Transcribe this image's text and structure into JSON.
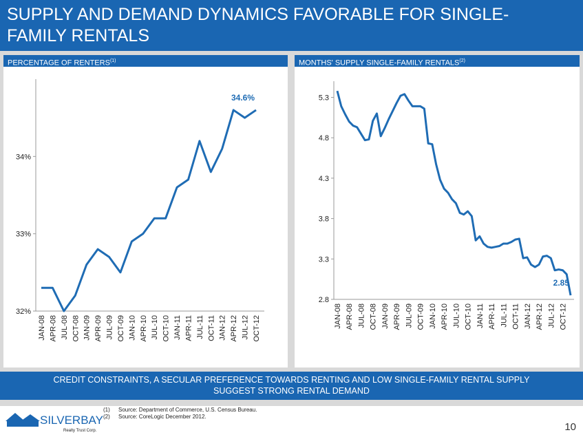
{
  "header": {
    "title": "SUPPLY AND DEMAND DYNAMICS FAVORABLE FOR SINGLE-FAMILY RENTALS"
  },
  "chart_data": [
    {
      "type": "line",
      "title": "PERCENTAGE OF RENTERS",
      "title_note": "(1)",
      "color": "#1f6cb4",
      "categories": [
        "JAN-08",
        "APR-08",
        "JUL-08",
        "OCT-08",
        "JAN-09",
        "APR-09",
        "JUL-09",
        "OCT-09",
        "JAN-10",
        "APR-10",
        "JUL-10",
        "OCT-10",
        "JAN-11",
        "APR-11",
        "JUL-11",
        "OCT-11",
        "JAN-12",
        "APR-12",
        "JUL-12",
        "OCT-12"
      ],
      "values": [
        32.3,
        32.3,
        32.0,
        32.2,
        32.6,
        32.8,
        32.7,
        32.5,
        32.9,
        33.0,
        33.2,
        33.2,
        33.6,
        33.7,
        34.2,
        33.8,
        34.1,
        34.6,
        34.5,
        34.6
      ],
      "value_labels": [
        null,
        null,
        null,
        null,
        null,
        null,
        null,
        null,
        null,
        null,
        null,
        null,
        null,
        null,
        null,
        null,
        null,
        null,
        null,
        "34.6%"
      ],
      "ylim": [
        32,
        35
      ],
      "yticks": [
        {
          "value": 32,
          "label": "32%"
        },
        {
          "value": 33,
          "label": "33%"
        },
        {
          "value": 34,
          "label": "34%"
        }
      ]
    },
    {
      "type": "line",
      "title": "MONTHS' SUPPLY SINGLE-FAMILY RENTALS",
      "title_note": "(2)",
      "color": "#1f6cb4",
      "categories": [
        "JAN-08",
        null,
        null,
        "APR-08",
        null,
        null,
        "JUL-08",
        null,
        null,
        "OCT-08",
        null,
        null,
        "JAN-09",
        null,
        null,
        "APR-09",
        null,
        null,
        "JUL-09",
        null,
        null,
        "OCT-09",
        null,
        null,
        "JAN-10",
        null,
        null,
        "APR-10",
        null,
        null,
        "JUL-10",
        null,
        null,
        "OCT-10",
        null,
        null,
        "JAN-11",
        null,
        null,
        "APR-11",
        null,
        null,
        "JUL-11",
        null,
        null,
        "OCT-11",
        null,
        null,
        "JAN-12",
        null,
        null,
        "APR-12",
        null,
        null,
        "JUL-12",
        null,
        null,
        "OCT-12",
        null,
        null
      ],
      "values": [
        5.38,
        5.19,
        5.09,
        5.0,
        4.95,
        4.93,
        4.85,
        4.77,
        4.78,
        5.01,
        5.1,
        4.82,
        4.92,
        5.03,
        5.13,
        5.23,
        5.32,
        5.34,
        5.26,
        5.19,
        5.19,
        5.19,
        5.16,
        4.73,
        4.72,
        4.47,
        4.28,
        4.17,
        4.12,
        4.04,
        3.99,
        3.87,
        3.85,
        3.89,
        3.83,
        3.53,
        3.58,
        3.49,
        3.45,
        3.44,
        3.45,
        3.46,
        3.49,
        3.49,
        3.51,
        3.54,
        3.55,
        3.31,
        3.32,
        3.23,
        3.2,
        3.23,
        3.33,
        3.34,
        3.31,
        3.16,
        3.17,
        3.16,
        3.11,
        2.85
      ],
      "value_labels": [
        null,
        null,
        null,
        null,
        null,
        null,
        null,
        null,
        null,
        null,
        null,
        null,
        null,
        null,
        null,
        null,
        null,
        null,
        null,
        null,
        null,
        null,
        null,
        null,
        null,
        null,
        null,
        null,
        null,
        null,
        null,
        null,
        null,
        null,
        null,
        null,
        null,
        null,
        null,
        null,
        null,
        null,
        null,
        null,
        null,
        null,
        null,
        null,
        null,
        null,
        null,
        null,
        null,
        null,
        null,
        null,
        null,
        null,
        null,
        "2.85"
      ],
      "ylim": [
        2.8,
        5.5
      ],
      "yticks": [
        2.8,
        3.3,
        3.8,
        4.3,
        4.8,
        5.3
      ]
    }
  ],
  "banner": {
    "text": "CREDIT CONSTRAINTS, A SECULAR PREFERENCE TOWARDS RENTING AND LOW SINGLE-FAMILY RENTAL SUPPLY SUGGEST STRONG RENTAL DEMAND"
  },
  "footer": {
    "logo": "SILVERBAY",
    "logo_sub": "Realty Trust Corp.",
    "notes": [
      {
        "marker": "(1)",
        "text": "Source: Department of Commerce, U.S. Census Bureau."
      },
      {
        "marker": "(2)",
        "text": "Source: CoreLogic December 2012."
      }
    ],
    "page": "10"
  }
}
